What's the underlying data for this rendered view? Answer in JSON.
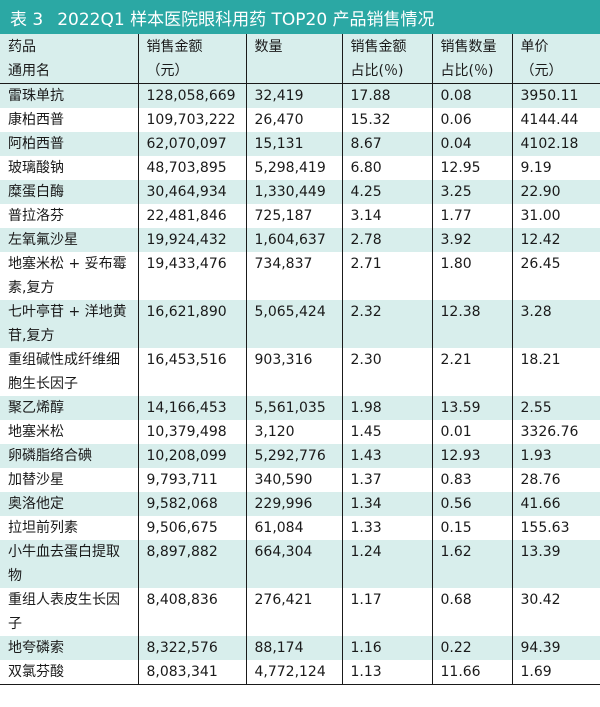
{
  "title": {
    "table_no": "表 3",
    "text": "2022Q1 样本医院眼科用药 TOP20 产品销售情况"
  },
  "colors": {
    "accent": "#2ba8a4",
    "row_shade": "#d8eeec"
  },
  "headers": [
    [
      "药品",
      "通用名"
    ],
    [
      "销售金额",
      "（元）"
    ],
    [
      "数量",
      ""
    ],
    [
      "销售金额",
      "占比(％)"
    ],
    [
      "销售数量",
      "占比(％)"
    ],
    [
      "单价",
      "（元）"
    ]
  ],
  "rows": [
    [
      "雷珠单抗",
      "128,058,669",
      "32,419",
      "17.88",
      "0.08",
      "3950.11"
    ],
    [
      "康柏西普",
      "109,703,222",
      "26,470",
      "15.32",
      "0.06",
      "4144.44"
    ],
    [
      "阿柏西普",
      "62,070,097",
      "15,131",
      "8.67",
      "0.04",
      "4102.18"
    ],
    [
      "玻璃酸钠",
      "48,703,895",
      "5,298,419",
      "6.80",
      "12.95",
      "9.19"
    ],
    [
      "糜蛋白酶",
      "30,464,934",
      "1,330,449",
      "4.25",
      "3.25",
      "22.90"
    ],
    [
      "普拉洛芬",
      "22,481,846",
      "725,187",
      "3.14",
      "1.77",
      "31.00"
    ],
    [
      "左氧氟沙星",
      "19,924,432",
      "1,604,637",
      "2.78",
      "3.92",
      "12.42"
    ],
    [
      "地塞米松 + 妥布霉素,复方",
      "19,433,476",
      "734,837",
      "2.71",
      "1.80",
      "26.45"
    ],
    [
      "七叶亭苷 + 洋地黄苷,复方",
      "16,621,890",
      "5,065,424",
      "2.32",
      "12.38",
      "3.28"
    ],
    [
      "重组碱性成纤维细胞生长因子",
      "16,453,516",
      "903,316",
      "2.30",
      "2.21",
      "18.21"
    ],
    [
      "聚乙烯醇",
      "14,166,453",
      "5,561,035",
      "1.98",
      "13.59",
      "2.55"
    ],
    [
      "地塞米松",
      "10,379,498",
      "3,120",
      "1.45",
      "0.01",
      "3326.76"
    ],
    [
      "卵磷脂络合碘",
      "10,208,099",
      "5,292,776",
      "1.43",
      "12.93",
      "1.93"
    ],
    [
      "加替沙星",
      "9,793,711",
      "340,590",
      "1.37",
      "0.83",
      "28.76"
    ],
    [
      "奥洛他定",
      "9,582,068",
      "229,996",
      "1.34",
      "0.56",
      "41.66"
    ],
    [
      "拉坦前列素",
      "9,506,675",
      "61,084",
      "1.33",
      "0.15",
      "155.63"
    ],
    [
      "小牛血去蛋白提取物",
      "8,897,882",
      "664,304",
      "1.24",
      "1.62",
      "13.39"
    ],
    [
      "重组人表皮生长因子",
      "8,408,836",
      "276,421",
      "1.17",
      "0.68",
      "30.42"
    ],
    [
      "地夸磷索",
      "8,322,576",
      "88,174",
      "1.16",
      "0.22",
      "94.39"
    ],
    [
      "双氯芬酸",
      "8,083,341",
      "4,772,124",
      "1.13",
      "11.66",
      "1.69"
    ]
  ]
}
